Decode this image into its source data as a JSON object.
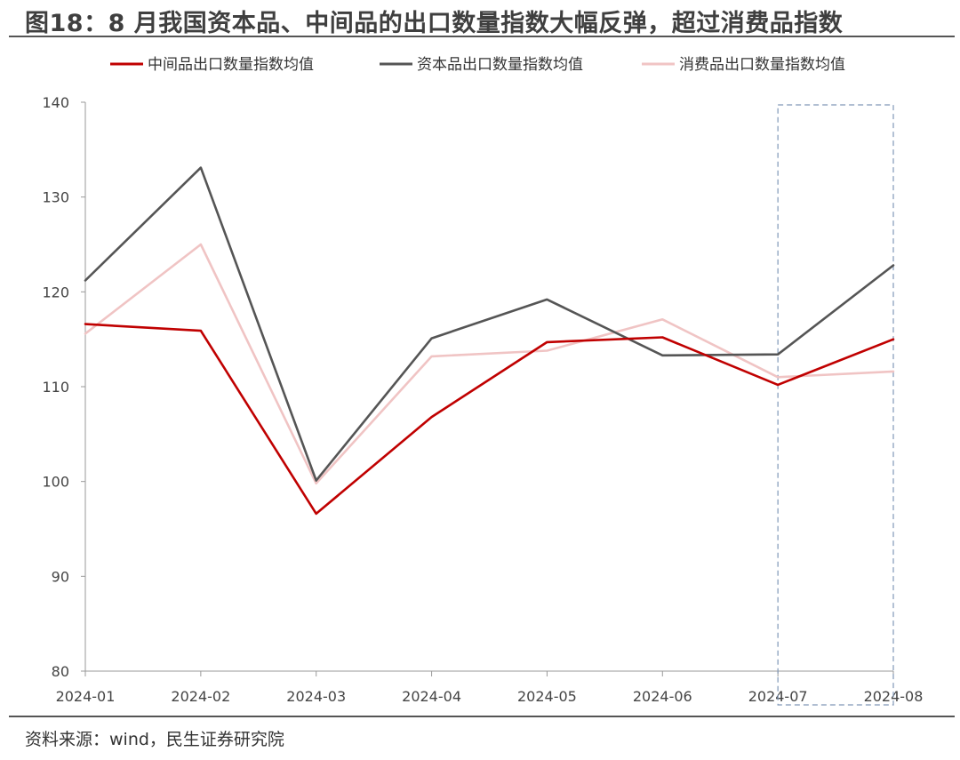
{
  "figure": {
    "title": "图18：8 月我国资本品、中间品的出口数量指数大幅反弹，超过消费品指数",
    "source": "资料来源：wind，民生证券研究院"
  },
  "chart_data": {
    "type": "line",
    "title": "",
    "xlabel": "",
    "ylabel": "",
    "categories": [
      "2024-01",
      "2024-02",
      "2024-03",
      "2024-04",
      "2024-05",
      "2024-06",
      "2024-07",
      "2024-08"
    ],
    "yticks": [
      80,
      90,
      100,
      110,
      120,
      130,
      140
    ],
    "ylim": [
      80,
      140
    ],
    "grid": false,
    "legend_position": "top",
    "series": [
      {
        "name": "中间品出口数量指数均值",
        "color": "#c00000",
        "values": [
          116.6,
          115.9,
          96.6,
          106.8,
          114.7,
          115.2,
          110.2,
          115.0
        ]
      },
      {
        "name": "资本品出口数量指数均值",
        "color": "#555555",
        "values": [
          121.2,
          133.1,
          100.1,
          115.1,
          119.2,
          113.3,
          113.4,
          122.8
        ]
      },
      {
        "name": "消费品出口数量指数均值",
        "color": "#f0c4c4",
        "values": [
          115.6,
          125.0,
          99.8,
          113.2,
          113.8,
          117.1,
          111.0,
          111.6
        ]
      }
    ],
    "highlight": {
      "from": "2024-07",
      "to": "2024-08",
      "style": "dashed-box",
      "color": "#8098b8"
    }
  }
}
